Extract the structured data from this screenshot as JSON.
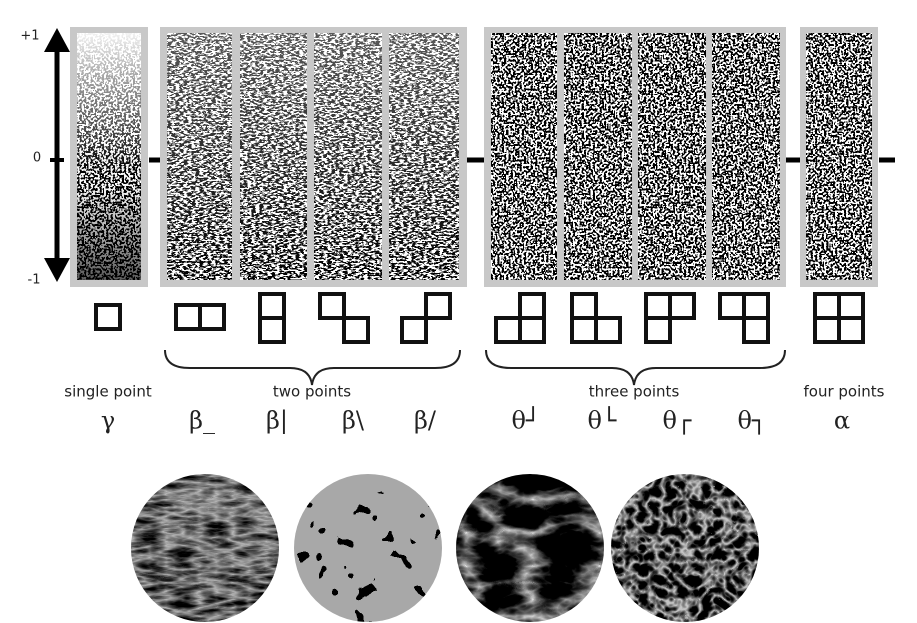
{
  "axis": {
    "top": "+1",
    "middle": "0",
    "bottom": "-1"
  },
  "groups": [
    {
      "label": "single point"
    },
    {
      "label": "two points"
    },
    {
      "label": "three points"
    },
    {
      "label": "four points"
    }
  ],
  "symbols": [
    "γ",
    "β_",
    "β|",
    "β\\",
    "β/",
    "θ┘",
    "θ└",
    "θ┌",
    "θ┐",
    "α"
  ]
}
